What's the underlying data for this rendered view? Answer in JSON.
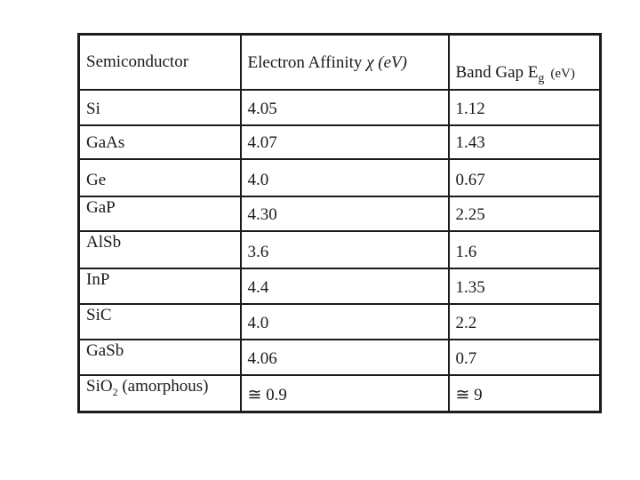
{
  "page": {
    "background": "#ffffff",
    "text_color": "#1a1a1a",
    "border_color": "#1c1c1c"
  },
  "table": {
    "headers": {
      "semiconductor": "Semiconductor",
      "electron_affinity_text": "Electron Affinity ",
      "electron_affinity_symbol": "χ (eV)",
      "band_gap_text": "Band Gap E",
      "band_gap_sub": "g",
      "band_gap_unit": "(eV)"
    },
    "rows": [
      {
        "name": "Si",
        "affinity": "4.05",
        "bandgap": "1.12"
      },
      {
        "name": "GaAs",
        "affinity": "4.07",
        "bandgap": "1.43"
      },
      {
        "name": "Ge",
        "affinity": "4.0",
        "bandgap": "0.67"
      },
      {
        "name": "GaP",
        "affinity": "4.30",
        "bandgap": "2.25"
      },
      {
        "name": "AlSb",
        "affinity": "3.6",
        "bandgap": "1.6"
      },
      {
        "name": "InP",
        "affinity": "4.4",
        "bandgap": "1.35"
      },
      {
        "name": "SiC",
        "affinity": "4.0",
        "bandgap": "2.2"
      },
      {
        "name": "GaSb",
        "affinity": "4.06",
        "bandgap": "0.7"
      },
      {
        "name": "SiO",
        "name_sub": "2",
        "name_suffix": " (amorphous)",
        "affinity": "≅ 0.9",
        "bandgap": "≅ 9"
      }
    ]
  }
}
